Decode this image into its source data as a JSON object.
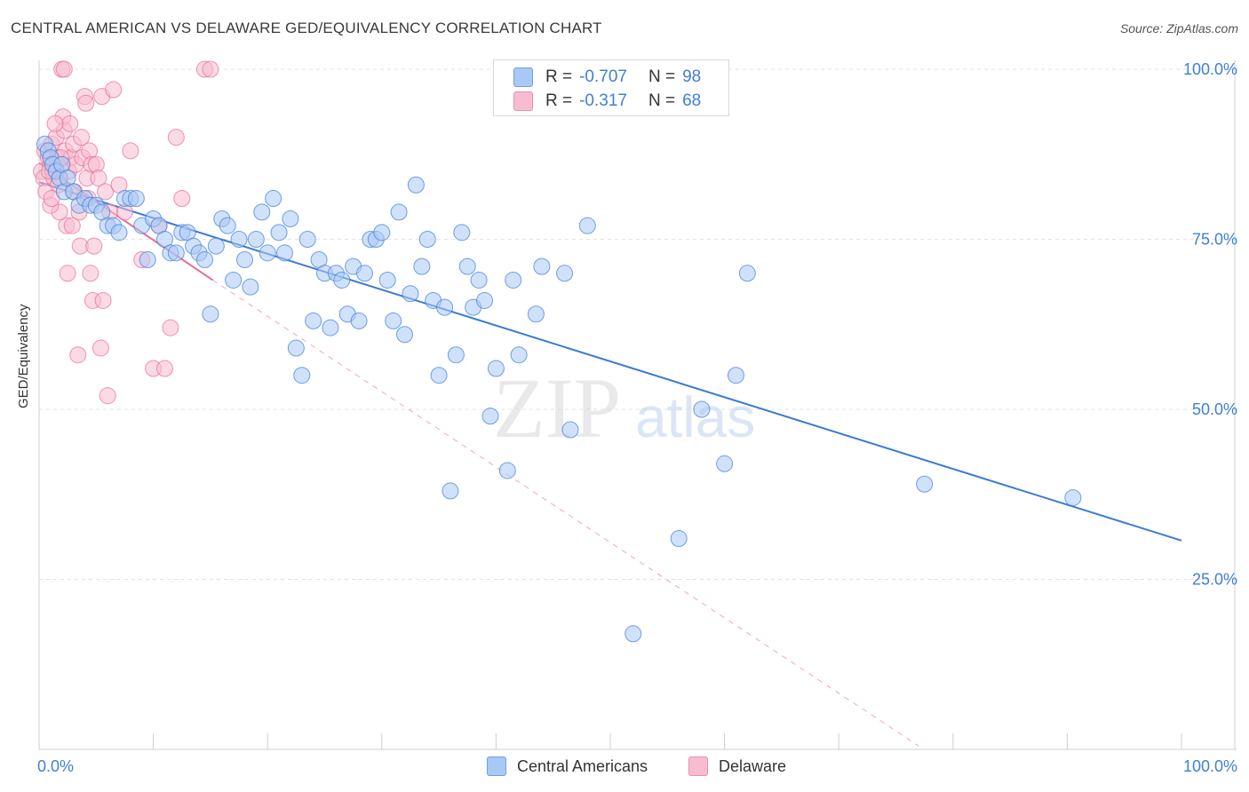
{
  "title": "CENTRAL AMERICAN VS DELAWARE GED/EQUIVALENCY CORRELATION CHART",
  "source": "Source: ZipAtlas.com",
  "watermark": {
    "zip": "ZIP",
    "atlas": "atlas"
  },
  "legend": {
    "rows": [
      {
        "r_label": "R =",
        "r_value": "-0.707",
        "n_label": "N =",
        "n_value": "98",
        "color": "#a9c9f5",
        "border": "#6d9fe0"
      },
      {
        "r_label": "R =",
        "r_value": "-0.317",
        "n_label": "N =",
        "n_value": "68",
        "color": "#f8bcd0",
        "border": "#ec8fb0"
      }
    ]
  },
  "bottom_legend": [
    {
      "label": "Central Americans",
      "color": "#a9c9f5",
      "border": "#6d9fe0"
    },
    {
      "label": "Delaware",
      "color": "#f8bcd0",
      "border": "#ec8fb0"
    }
  ],
  "chart_data": {
    "type": "scatter",
    "title": "CENTRAL AMERICAN VS DELAWARE GED/EQUIVALENCY CORRELATION CHART",
    "xlabel": "",
    "ylabel": "GED/Equivalency",
    "xlim": [
      0,
      100
    ],
    "ylim": [
      0,
      100
    ],
    "x_tick_labels": [
      "0.0%",
      "100.0%"
    ],
    "y_tick_labels": [
      {
        "value": 100,
        "label": "100.0%"
      },
      {
        "value": 75,
        "label": "75.0%"
      },
      {
        "value": 50,
        "label": "50.0%"
      },
      {
        "value": 25,
        "label": "25.0%"
      }
    ],
    "series": [
      {
        "name": "Central Americans",
        "color": "#3a7bd5",
        "fill": "#a9c9f5",
        "trend": {
          "x": [
            0,
            100
          ],
          "y": [
            83.4,
            30.7
          ]
        },
        "points": [
          [
            0.5,
            89
          ],
          [
            0.8,
            88
          ],
          [
            1.0,
            87
          ],
          [
            1.2,
            86
          ],
          [
            1.5,
            85
          ],
          [
            1.8,
            84
          ],
          [
            2.0,
            86
          ],
          [
            2.2,
            82
          ],
          [
            2.5,
            84
          ],
          [
            3.0,
            82
          ],
          [
            3.5,
            80
          ],
          [
            4.0,
            81
          ],
          [
            4.5,
            80
          ],
          [
            5.0,
            80
          ],
          [
            5.5,
            79
          ],
          [
            6.0,
            77
          ],
          [
            6.5,
            77
          ],
          [
            7.0,
            76
          ],
          [
            7.5,
            81
          ],
          [
            8.0,
            81
          ],
          [
            8.5,
            81
          ],
          [
            9.0,
            77
          ],
          [
            9.5,
            72
          ],
          [
            10.0,
            78
          ],
          [
            10.5,
            77
          ],
          [
            11.0,
            75
          ],
          [
            11.5,
            73
          ],
          [
            12.0,
            73
          ],
          [
            12.5,
            76
          ],
          [
            13.0,
            76
          ],
          [
            13.5,
            74
          ],
          [
            14.0,
            73
          ],
          [
            14.5,
            72
          ],
          [
            15.0,
            64
          ],
          [
            15.5,
            74
          ],
          [
            16.0,
            78
          ],
          [
            16.5,
            77
          ],
          [
            17.0,
            69
          ],
          [
            17.5,
            75
          ],
          [
            18.0,
            72
          ],
          [
            18.5,
            68
          ],
          [
            19.0,
            75
          ],
          [
            19.5,
            79
          ],
          [
            20.0,
            73
          ],
          [
            20.5,
            81
          ],
          [
            21.0,
            76
          ],
          [
            21.5,
            73
          ],
          [
            22.0,
            78
          ],
          [
            22.5,
            59
          ],
          [
            23.0,
            55
          ],
          [
            23.5,
            75
          ],
          [
            24.0,
            63
          ],
          [
            24.5,
            72
          ],
          [
            25.0,
            70
          ],
          [
            25.5,
            62
          ],
          [
            26.0,
            70
          ],
          [
            26.5,
            69
          ],
          [
            27.0,
            64
          ],
          [
            27.5,
            71
          ],
          [
            28.0,
            63
          ],
          [
            28.5,
            70
          ],
          [
            29.0,
            75
          ],
          [
            29.5,
            75
          ],
          [
            30.0,
            76
          ],
          [
            30.5,
            69
          ],
          [
            31.0,
            63
          ],
          [
            31.5,
            79
          ],
          [
            32.0,
            61
          ],
          [
            32.5,
            67
          ],
          [
            33.0,
            83
          ],
          [
            33.5,
            71
          ],
          [
            34.0,
            75
          ],
          [
            34.5,
            66
          ],
          [
            35.0,
            55
          ],
          [
            35.5,
            65
          ],
          [
            36.0,
            38
          ],
          [
            36.5,
            58
          ],
          [
            37.0,
            76
          ],
          [
            37.5,
            71
          ],
          [
            38.0,
            65
          ],
          [
            38.5,
            69
          ],
          [
            39.0,
            66
          ],
          [
            39.5,
            49
          ],
          [
            40.0,
            56
          ],
          [
            41.0,
            41
          ],
          [
            41.5,
            69
          ],
          [
            42.0,
            58
          ],
          [
            43.5,
            64
          ],
          [
            44.0,
            71
          ],
          [
            46.0,
            70
          ],
          [
            46.5,
            47
          ],
          [
            48.0,
            77
          ],
          [
            52.0,
            17
          ],
          [
            56.0,
            31
          ],
          [
            58.0,
            50
          ],
          [
            60.0,
            42
          ],
          [
            61.0,
            55
          ],
          [
            62.0,
            70
          ],
          [
            77.5,
            39
          ],
          [
            90.5,
            37
          ]
        ]
      },
      {
        "name": "Delaware",
        "color": "#e86a96",
        "fill": "#f8bcd0",
        "trend": {
          "x": [
            0,
            15.2
          ],
          "y": [
            86.2,
            69.0
          ]
        },
        "trend_extension": {
          "x": [
            15.2,
            77.0
          ],
          "y": [
            69.0,
            0.5
          ]
        },
        "points": [
          [
            0.2,
            85
          ],
          [
            0.4,
            84
          ],
          [
            0.5,
            88
          ],
          [
            0.6,
            82
          ],
          [
            0.8,
            87
          ],
          [
            1.0,
            86
          ],
          [
            1.1,
            89
          ],
          [
            1.2,
            85
          ],
          [
            1.3,
            84
          ],
          [
            1.5,
            90
          ],
          [
            1.6,
            87
          ],
          [
            1.7,
            83
          ],
          [
            1.8,
            79
          ],
          [
            2.0,
            86
          ],
          [
            2.1,
            93
          ],
          [
            2.2,
            91
          ],
          [
            2.3,
            88
          ],
          [
            2.4,
            77
          ],
          [
            2.5,
            70
          ],
          [
            2.6,
            85
          ],
          [
            2.7,
            92
          ],
          [
            2.8,
            87
          ],
          [
            3.0,
            89
          ],
          [
            3.1,
            82
          ],
          [
            3.2,
            86
          ],
          [
            3.4,
            58
          ],
          [
            3.5,
            79
          ],
          [
            3.6,
            74
          ],
          [
            3.7,
            90
          ],
          [
            3.8,
            87
          ],
          [
            4.0,
            96
          ],
          [
            4.1,
            95
          ],
          [
            4.2,
            84
          ],
          [
            4.3,
            81
          ],
          [
            4.4,
            88
          ],
          [
            4.5,
            70
          ],
          [
            4.6,
            86
          ],
          [
            4.7,
            66
          ],
          [
            4.8,
            74
          ],
          [
            5.0,
            86
          ],
          [
            5.2,
            84
          ],
          [
            5.4,
            59
          ],
          [
            5.5,
            96
          ],
          [
            5.6,
            66
          ],
          [
            5.8,
            82
          ],
          [
            6.0,
            52
          ],
          [
            6.2,
            79
          ],
          [
            6.5,
            97
          ],
          [
            7.0,
            83
          ],
          [
            7.5,
            79
          ],
          [
            1.0,
            80
          ],
          [
            1.4,
            92
          ],
          [
            2.0,
            100
          ],
          [
            2.2,
            100
          ],
          [
            1.9,
            87
          ],
          [
            2.9,
            77
          ],
          [
            0.9,
            85
          ],
          [
            1.1,
            81
          ],
          [
            8.0,
            88
          ],
          [
            9.0,
            72
          ],
          [
            10.0,
            56
          ],
          [
            10.5,
            77
          ],
          [
            11.0,
            56
          ],
          [
            11.5,
            62
          ],
          [
            12.0,
            90
          ],
          [
            12.5,
            81
          ],
          [
            14.5,
            100
          ],
          [
            15.0,
            100
          ]
        ]
      }
    ]
  }
}
